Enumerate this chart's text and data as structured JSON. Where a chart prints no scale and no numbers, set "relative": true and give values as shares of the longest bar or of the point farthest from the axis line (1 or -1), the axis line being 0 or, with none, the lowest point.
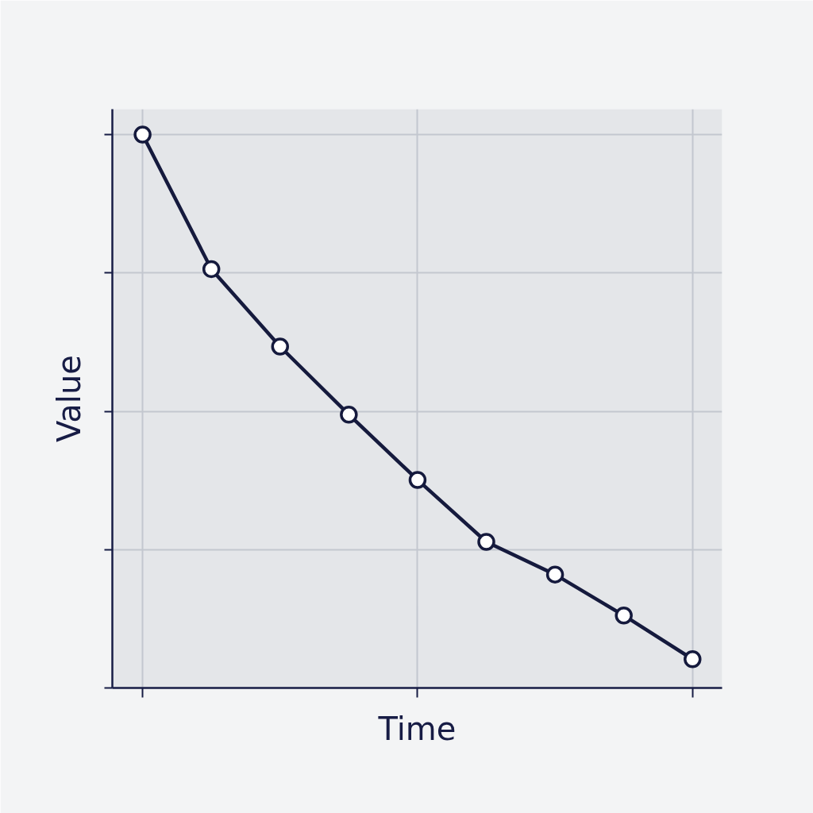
{
  "chart_data": {
    "type": "line",
    "xlabel": "Time",
    "ylabel": "Value",
    "relative": true,
    "categories": [
      null,
      null,
      null,
      null,
      null,
      null,
      null,
      null,
      null
    ],
    "series": [
      {
        "color": "#151a3d",
        "values": [
          1,
          0.757,
          0.617,
          0.494,
          0.376,
          0.264,
          0.205,
          0.131,
          0.052
        ]
      }
    ],
    "grid": true,
    "marker": "circle",
    "line_style": "solid"
  }
}
